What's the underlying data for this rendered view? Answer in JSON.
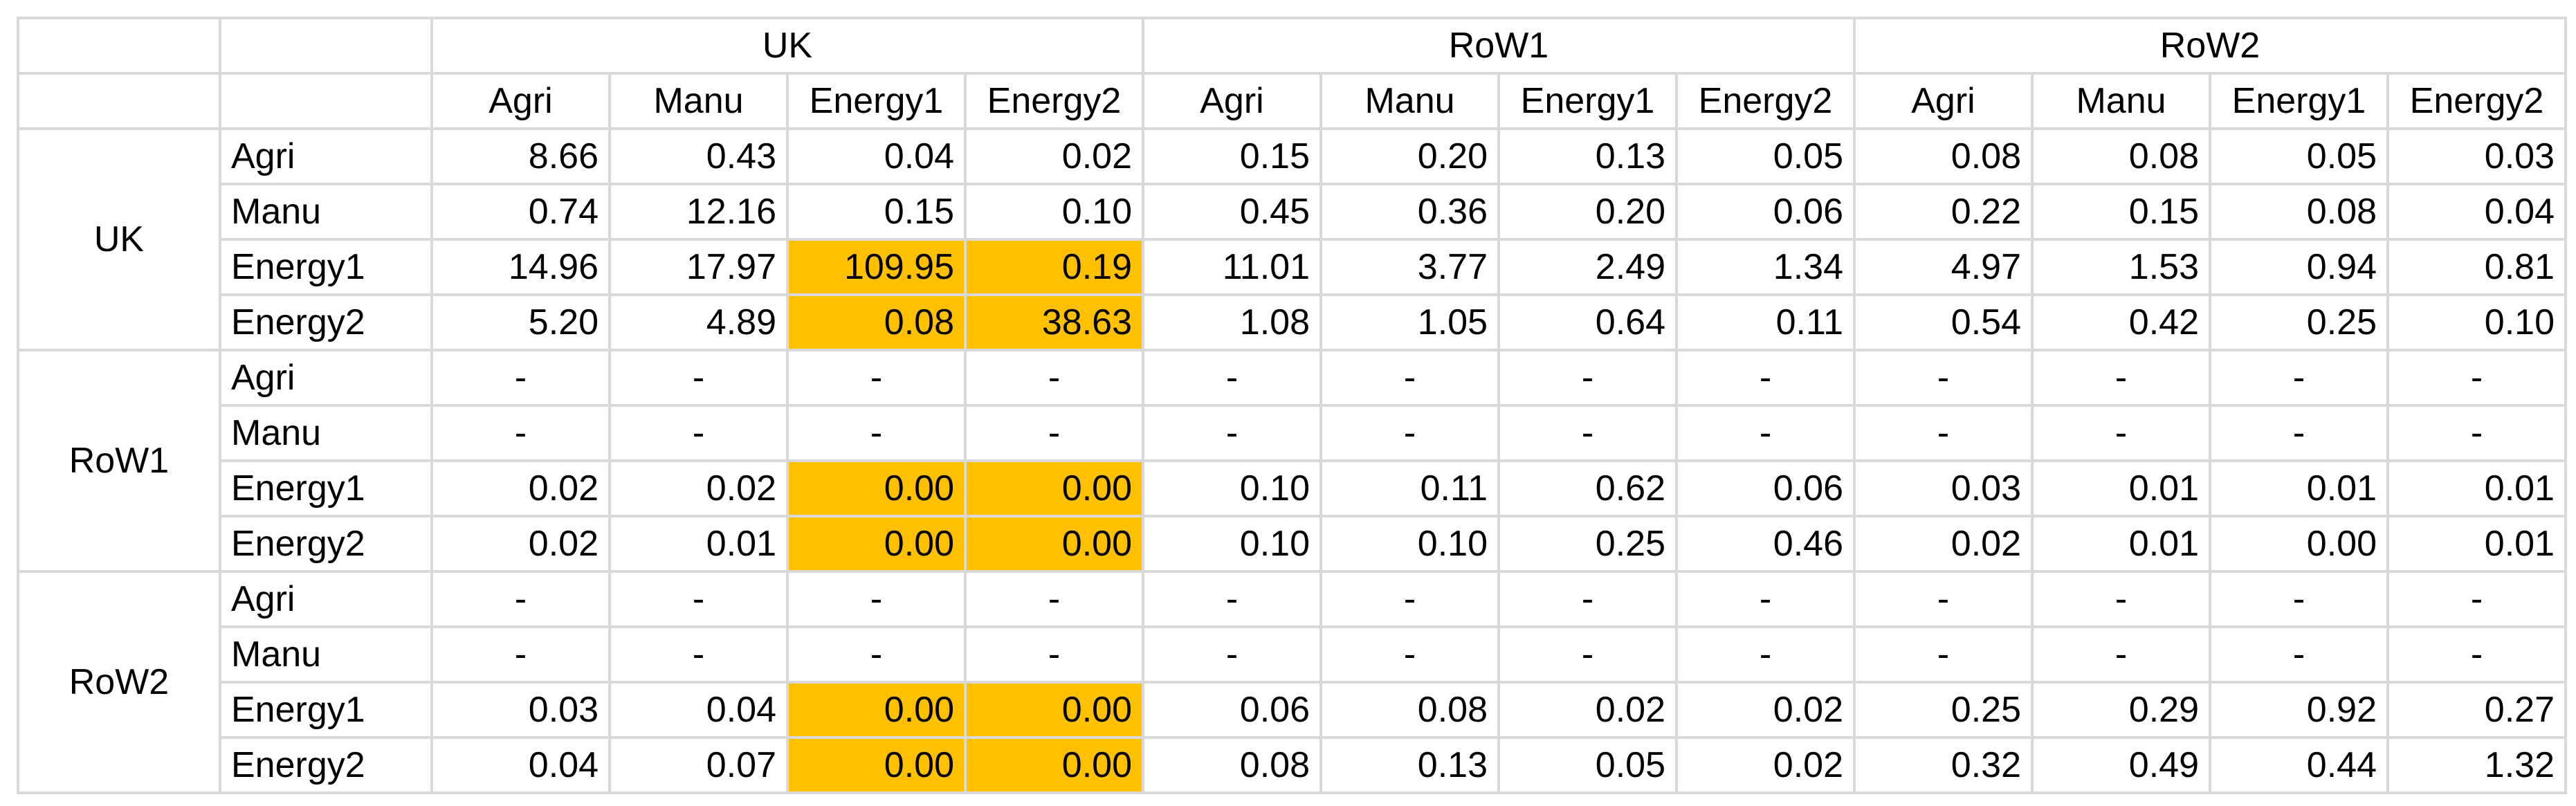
{
  "table": {
    "column_groups": [
      {
        "name": "UK",
        "sectors": [
          "Agri",
          "Manu",
          "Energy1",
          "Energy2"
        ]
      },
      {
        "name": "RoW1",
        "sectors": [
          "Agri",
          "Manu",
          "Energy1",
          "Energy2"
        ]
      },
      {
        "name": "RoW2",
        "sectors": [
          "Agri",
          "Manu",
          "Energy1",
          "Energy2"
        ]
      }
    ],
    "row_blocks": [
      {
        "region": "UK",
        "rows": [
          {
            "sector": "Agri",
            "values": [
              "8.66",
              "0.43",
              "0.04",
              "0.02",
              "0.15",
              "0.20",
              "0.13",
              "0.05",
              "0.08",
              "0.08",
              "0.05",
              "0.03"
            ]
          },
          {
            "sector": "Manu",
            "values": [
              "0.74",
              "12.16",
              "0.15",
              "0.10",
              "0.45",
              "0.36",
              "0.20",
              "0.06",
              "0.22",
              "0.15",
              "0.08",
              "0.04"
            ]
          },
          {
            "sector": "Energy1",
            "values": [
              "14.96",
              "17.97",
              "109.95",
              "0.19",
              "11.01",
              "3.77",
              "2.49",
              "1.34",
              "4.97",
              "1.53",
              "0.94",
              "0.81"
            ]
          },
          {
            "sector": "Energy2",
            "values": [
              "5.20",
              "4.89",
              "0.08",
              "38.63",
              "1.08",
              "1.05",
              "0.64",
              "0.11",
              "0.54",
              "0.42",
              "0.25",
              "0.10"
            ]
          }
        ]
      },
      {
        "region": "RoW1",
        "rows": [
          {
            "sector": "Agri",
            "values": [
              "-",
              "-",
              "-",
              "-",
              "-",
              "-",
              "-",
              "-",
              "-",
              "-",
              "-",
              "-"
            ]
          },
          {
            "sector": "Manu",
            "values": [
              "-",
              "-",
              "-",
              "-",
              "-",
              "-",
              "-",
              "-",
              "-",
              "-",
              "-",
              "-"
            ]
          },
          {
            "sector": "Energy1",
            "values": [
              "0.02",
              "0.02",
              "0.00",
              "0.00",
              "0.10",
              "0.11",
              "0.62",
              "0.06",
              "0.03",
              "0.01",
              "0.01",
              "0.01"
            ]
          },
          {
            "sector": "Energy2",
            "values": [
              "0.02",
              "0.01",
              "0.00",
              "0.00",
              "0.10",
              "0.10",
              "0.25",
              "0.46",
              "0.02",
              "0.01",
              "0.00",
              "0.01"
            ]
          }
        ]
      },
      {
        "region": "RoW2",
        "rows": [
          {
            "sector": "Agri",
            "values": [
              "-",
              "-",
              "-",
              "-",
              "-",
              "-",
              "-",
              "-",
              "-",
              "-",
              "-",
              "-"
            ]
          },
          {
            "sector": "Manu",
            "values": [
              "-",
              "-",
              "-",
              "-",
              "-",
              "-",
              "-",
              "-",
              "-",
              "-",
              "-",
              "-"
            ]
          },
          {
            "sector": "Energy1",
            "values": [
              "0.03",
              "0.04",
              "0.00",
              "0.00",
              "0.06",
              "0.08",
              "0.02",
              "0.02",
              "0.25",
              "0.29",
              "0.92",
              "0.27"
            ]
          },
          {
            "sector": "Energy2",
            "values": [
              "0.04",
              "0.07",
              "0.00",
              "0.00",
              "0.08",
              "0.13",
              "0.05",
              "0.02",
              "0.32",
              "0.49",
              "0.44",
              "1.32"
            ]
          }
        ]
      }
    ]
  }
}
